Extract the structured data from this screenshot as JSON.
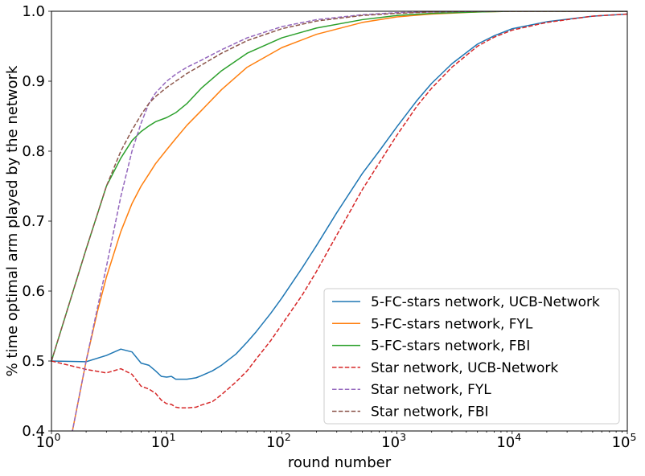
{
  "chart_data": {
    "type": "line",
    "title": "",
    "xlabel": "round number",
    "ylabel": "% time optimal arm played by the network",
    "xscale": "log",
    "xlim": [
      1,
      100000
    ],
    "ylim": [
      0.4,
      1.0
    ],
    "x_ticks": [
      {
        "value": 1,
        "base": "10",
        "exp": "0"
      },
      {
        "value": 10,
        "base": "10",
        "exp": "1"
      },
      {
        "value": 100,
        "base": "10",
        "exp": "2"
      },
      {
        "value": 1000,
        "base": "10",
        "exp": "3"
      },
      {
        "value": 10000,
        "base": "10",
        "exp": "4"
      },
      {
        "value": 100000,
        "base": "10",
        "exp": "5"
      }
    ],
    "y_ticks": [
      {
        "value": 0.4,
        "label": "0.4"
      },
      {
        "value": 0.5,
        "label": "0.5"
      },
      {
        "value": 0.6,
        "label": "0.6"
      },
      {
        "value": 0.7,
        "label": "0.7"
      },
      {
        "value": 0.8,
        "label": "0.8"
      },
      {
        "value": 0.9,
        "label": "0.9"
      },
      {
        "value": 1.0,
        "label": "1.0"
      }
    ],
    "grid": false,
    "legend_position": "bottom-right",
    "series": [
      {
        "name": "5-FC-stars network, UCB-Network",
        "color": "#1f77b4",
        "dash": "solid",
        "x": [
          1,
          2,
          3,
          4,
          5,
          6,
          7,
          8,
          9,
          10,
          11,
          12,
          13,
          15,
          18,
          20,
          25,
          30,
          40,
          50,
          60,
          80,
          100,
          150,
          200,
          300,
          500,
          700,
          1000,
          1500,
          2000,
          3000,
          5000,
          7000,
          10000,
          20000,
          50000,
          100000
        ],
        "y": [
          0.5,
          0.499,
          0.508,
          0.517,
          0.513,
          0.497,
          0.494,
          0.486,
          0.478,
          0.477,
          0.478,
          0.474,
          0.474,
          0.474,
          0.476,
          0.479,
          0.486,
          0.494,
          0.51,
          0.527,
          0.542,
          0.568,
          0.59,
          0.633,
          0.665,
          0.712,
          0.768,
          0.8,
          0.835,
          0.873,
          0.897,
          0.925,
          0.953,
          0.965,
          0.975,
          0.985,
          0.993,
          0.996
        ]
      },
      {
        "name": "5-FC-stars network, FYL",
        "color": "#ff7f0e",
        "dash": "solid",
        "x": [
          1,
          1.5,
          2,
          2.5,
          3,
          4,
          5,
          6,
          7,
          8,
          10,
          12,
          15,
          20,
          30,
          50,
          100,
          200,
          500,
          1000,
          2000,
          5000,
          10000,
          100000
        ],
        "y": [
          0.32,
          0.395,
          0.5,
          0.57,
          0.62,
          0.685,
          0.725,
          0.75,
          0.767,
          0.782,
          0.802,
          0.818,
          0.837,
          0.858,
          0.888,
          0.92,
          0.948,
          0.967,
          0.984,
          0.992,
          0.996,
          0.999,
          1.0,
          1.0
        ]
      },
      {
        "name": "5-FC-stars network, FBI",
        "color": "#2ca02c",
        "dash": "solid",
        "x": [
          1,
          2,
          3,
          4,
          5,
          6,
          7,
          8,
          10,
          12,
          15,
          20,
          30,
          50,
          100,
          200,
          500,
          1000,
          2000,
          5000,
          10000,
          100000
        ],
        "y": [
          0.5,
          0.66,
          0.75,
          0.79,
          0.815,
          0.828,
          0.836,
          0.842,
          0.848,
          0.855,
          0.868,
          0.89,
          0.915,
          0.94,
          0.962,
          0.976,
          0.988,
          0.994,
          0.997,
          0.999,
          1.0,
          1.0
        ]
      },
      {
        "name": "Star network, UCB-Network",
        "color": "#d62728",
        "dash": "dashed",
        "x": [
          1,
          2,
          3,
          4,
          5,
          6,
          7,
          8,
          9,
          10,
          11,
          12,
          13,
          15,
          18,
          20,
          25,
          30,
          40,
          50,
          60,
          80,
          100,
          150,
          200,
          300,
          500,
          700,
          1000,
          1500,
          2000,
          3000,
          5000,
          7000,
          10000,
          20000,
          50000,
          100000
        ],
        "y": [
          0.5,
          0.488,
          0.483,
          0.489,
          0.481,
          0.464,
          0.46,
          0.454,
          0.444,
          0.439,
          0.438,
          0.434,
          0.433,
          0.433,
          0.434,
          0.437,
          0.442,
          0.452,
          0.47,
          0.486,
          0.503,
          0.529,
          0.552,
          0.594,
          0.628,
          0.68,
          0.745,
          0.783,
          0.823,
          0.865,
          0.89,
          0.92,
          0.95,
          0.963,
          0.973,
          0.984,
          0.993,
          0.996
        ]
      },
      {
        "name": "Star network, FYL",
        "color": "#9467bd",
        "dash": "dashed",
        "x": [
          1,
          1.5,
          2,
          2.5,
          3,
          4,
          5,
          6,
          7,
          8,
          10,
          12,
          15,
          20,
          30,
          50,
          100,
          200,
          500,
          1000,
          2000,
          5000,
          10000,
          100000
        ],
        "y": [
          0.32,
          0.395,
          0.5,
          0.575,
          0.635,
          0.735,
          0.8,
          0.84,
          0.868,
          0.883,
          0.9,
          0.91,
          0.92,
          0.93,
          0.945,
          0.962,
          0.978,
          0.988,
          0.995,
          0.998,
          0.999,
          1.0,
          1.0,
          1.0
        ]
      },
      {
        "name": "Star network, FBI",
        "color": "#8c564b",
        "dash": "dashed",
        "x": [
          1,
          2,
          3,
          4,
          5,
          6,
          7,
          8,
          10,
          12,
          15,
          20,
          30,
          50,
          100,
          200,
          500,
          1000,
          2000,
          5000,
          10000,
          100000
        ],
        "y": [
          0.5,
          0.66,
          0.75,
          0.8,
          0.83,
          0.852,
          0.868,
          0.878,
          0.891,
          0.9,
          0.911,
          0.923,
          0.94,
          0.958,
          0.975,
          0.986,
          0.994,
          0.997,
          0.999,
          1.0,
          1.0,
          1.0
        ]
      }
    ]
  }
}
